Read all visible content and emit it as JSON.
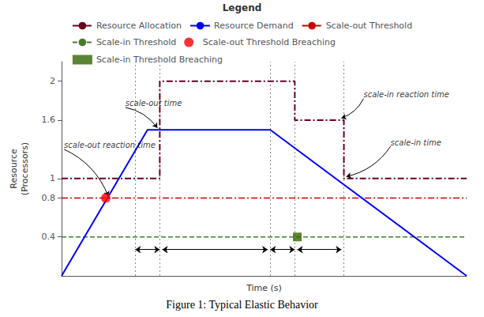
{
  "chart_data": {
    "type": "line",
    "title": "Figure 1: Typical Elastic Behavior",
    "x_label": "Time (s)",
    "y_label": "Resource\n(Processors)",
    "xlim": [
      0,
      16.5
    ],
    "ylim": [
      0,
      2.2
    ],
    "yticks": [
      0.4,
      0.8,
      1,
      1.6,
      2
    ],
    "tick_labels": "y",
    "grid": false,
    "legend": "top",
    "legend_title": "Legend",
    "series": [
      {
        "name": "Resource Allocation",
        "type": "line",
        "color": "#6B0020",
        "line_style": "dashdot",
        "x": [
          0,
          4.0,
          4.0,
          9.5,
          9.5,
          11.5,
          11.5,
          16.5
        ],
        "values": [
          1.0,
          1.0,
          2.0,
          2.0,
          1.6,
          1.6,
          1.0,
          1.0
        ]
      },
      {
        "name": "Resource Demand",
        "type": "line",
        "color": "#0000ff",
        "line_style": "solid",
        "x": [
          0,
          3.5,
          8.5,
          16.5
        ],
        "values": [
          0,
          1.5,
          1.5,
          0
        ]
      },
      {
        "name": "Scale-out Threshold",
        "type": "hline",
        "color": "#cc0000",
        "line_style": "dashdot",
        "values": [
          0.8
        ]
      },
      {
        "name": "Scale-in Threshold",
        "type": "hline",
        "color": "#4a7a30",
        "line_style": "dashed",
        "values": [
          0.4
        ]
      },
      {
        "name": "Scale-out Threshold Breaching",
        "type": "scatter",
        "color": "#ff0000",
        "marker": "circle",
        "x": [
          1.8
        ],
        "values": [
          0.8
        ]
      },
      {
        "name": "Scale-in Threshold Breaching",
        "type": "scatter",
        "color": "#336600",
        "marker": "square",
        "x": [
          9.6
        ],
        "values": [
          0.4
        ]
      }
    ],
    "vlines": [
      3.0,
      4.0,
      8.5,
      9.5,
      11.5
    ],
    "arrows": [
      {
        "x1": 3.0,
        "x2": 4.0,
        "y": 0.27
      },
      {
        "x1": 4.1,
        "x2": 8.4,
        "y": 0.27
      },
      {
        "x1": 8.5,
        "x2": 9.5,
        "y": 0.27
      },
      {
        "x1": 9.6,
        "x2": 11.4,
        "y": 0.27
      }
    ],
    "annotations": [
      {
        "text": "scale-out time",
        "xy": [
          3.9,
          1.52
        ],
        "xytext": [
          2.6,
          1.73
        ]
      },
      {
        "text": "scale-out reaction time",
        "xy": [
          1.9,
          0.82
        ],
        "xytext": [
          0.1,
          1.3
        ]
      },
      {
        "text": "scale-in reaction time",
        "xy": [
          11.4,
          1.62
        ],
        "xytext": [
          12.3,
          1.82
        ]
      },
      {
        "text": "scale-in time",
        "xy": [
          11.6,
          1.02
        ],
        "xytext": [
          13.4,
          1.33
        ]
      }
    ]
  }
}
